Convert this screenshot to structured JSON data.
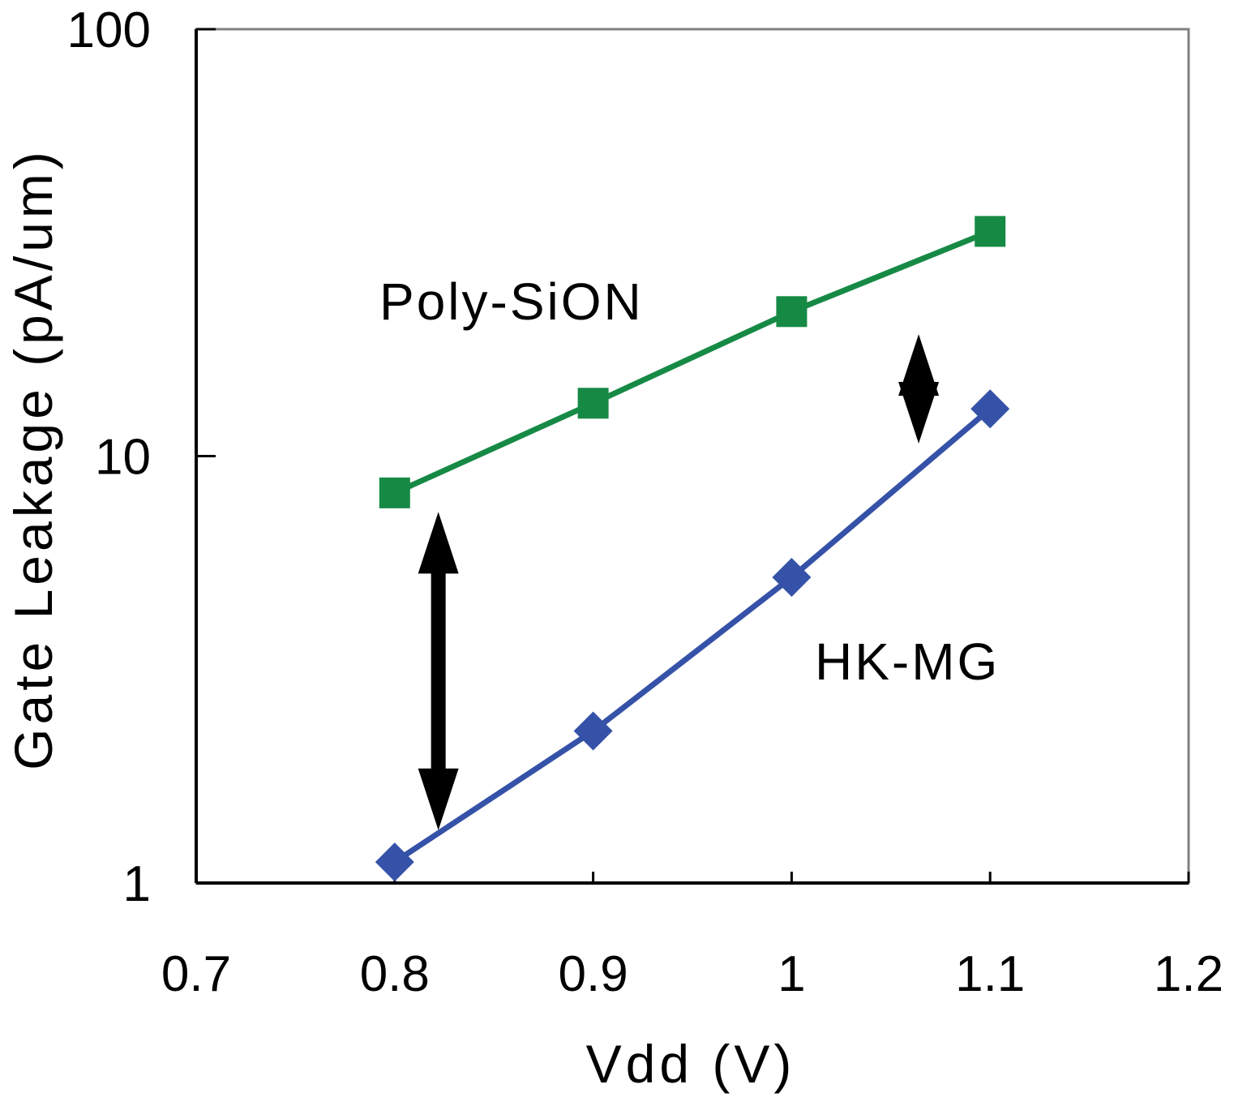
{
  "chart_data": {
    "type": "line",
    "title": "",
    "xlabel": "Vdd (V)",
    "ylabel": "Gate Leakage (pA/um)",
    "xlim": [
      0.7,
      1.2
    ],
    "ylim": [
      1,
      100
    ],
    "yscale": "log",
    "xticks": [
      {
        "value": 0.7,
        "label": "0.7"
      },
      {
        "value": 0.8,
        "label": "0.8"
      },
      {
        "value": 0.9,
        "label": "0.9"
      },
      {
        "value": 1.0,
        "label": "1"
      },
      {
        "value": 1.1,
        "label": "1.1"
      },
      {
        "value": 1.2,
        "label": "1.2"
      }
    ],
    "yticks": [
      {
        "value": 1,
        "label": "1"
      },
      {
        "value": 10,
        "label": "10"
      },
      {
        "value": 100,
        "label": "100"
      }
    ],
    "grid": false,
    "series": [
      {
        "name": "Poly-SiON",
        "color": "#168a45",
        "marker": "square",
        "x": [
          0.8,
          0.9,
          1.0,
          1.1
        ],
        "values": [
          8.2,
          13.3,
          21.8,
          33.6
        ]
      },
      {
        "name": "HK-MG",
        "color": "#3552a8",
        "marker": "diamond",
        "x": [
          0.8,
          0.9,
          1.0,
          1.1
        ],
        "values": [
          1.12,
          2.27,
          5.2,
          12.9
        ]
      }
    ],
    "annotations": [
      {
        "type": "double-arrow",
        "x": 0.822,
        "y_from": 7.4,
        "y_to": 1.33,
        "color": "#000000"
      },
      {
        "type": "double-arrow",
        "x": 1.064,
        "y_from": 19.3,
        "y_to": 10.7,
        "color": "#000000"
      }
    ]
  }
}
